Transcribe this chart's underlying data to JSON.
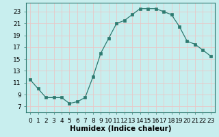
{
  "x": [
    0,
    1,
    2,
    3,
    4,
    5,
    6,
    7,
    8,
    9,
    10,
    11,
    12,
    13,
    14,
    15,
    16,
    17,
    18,
    19,
    20,
    21,
    22,
    23
  ],
  "y": [
    11.5,
    10.0,
    8.5,
    8.5,
    8.5,
    7.5,
    7.8,
    8.5,
    12.0,
    16.0,
    18.5,
    21.0,
    21.5,
    22.5,
    23.5,
    23.5,
    23.5,
    23.0,
    22.5,
    20.5,
    18.0,
    17.5,
    16.5,
    15.5
  ],
  "xlabel": "Humidex (Indice chaleur)",
  "ylim": [
    6,
    24.5
  ],
  "xlim": [
    -0.5,
    23.5
  ],
  "yticks": [
    7,
    9,
    11,
    13,
    15,
    17,
    19,
    21,
    23
  ],
  "xticks": [
    0,
    1,
    2,
    3,
    4,
    5,
    6,
    7,
    8,
    9,
    10,
    11,
    12,
    13,
    14,
    15,
    16,
    17,
    18,
    19,
    20,
    21,
    22,
    23
  ],
  "line_color": "#2d7a70",
  "marker": "s",
  "marker_size": 2.5,
  "bg_color": "#c8eeee",
  "grid_color": "#e8c8c8",
  "tick_label_fontsize": 6.5,
  "xlabel_fontsize": 7.5,
  "spine_color": "#2d7a70"
}
